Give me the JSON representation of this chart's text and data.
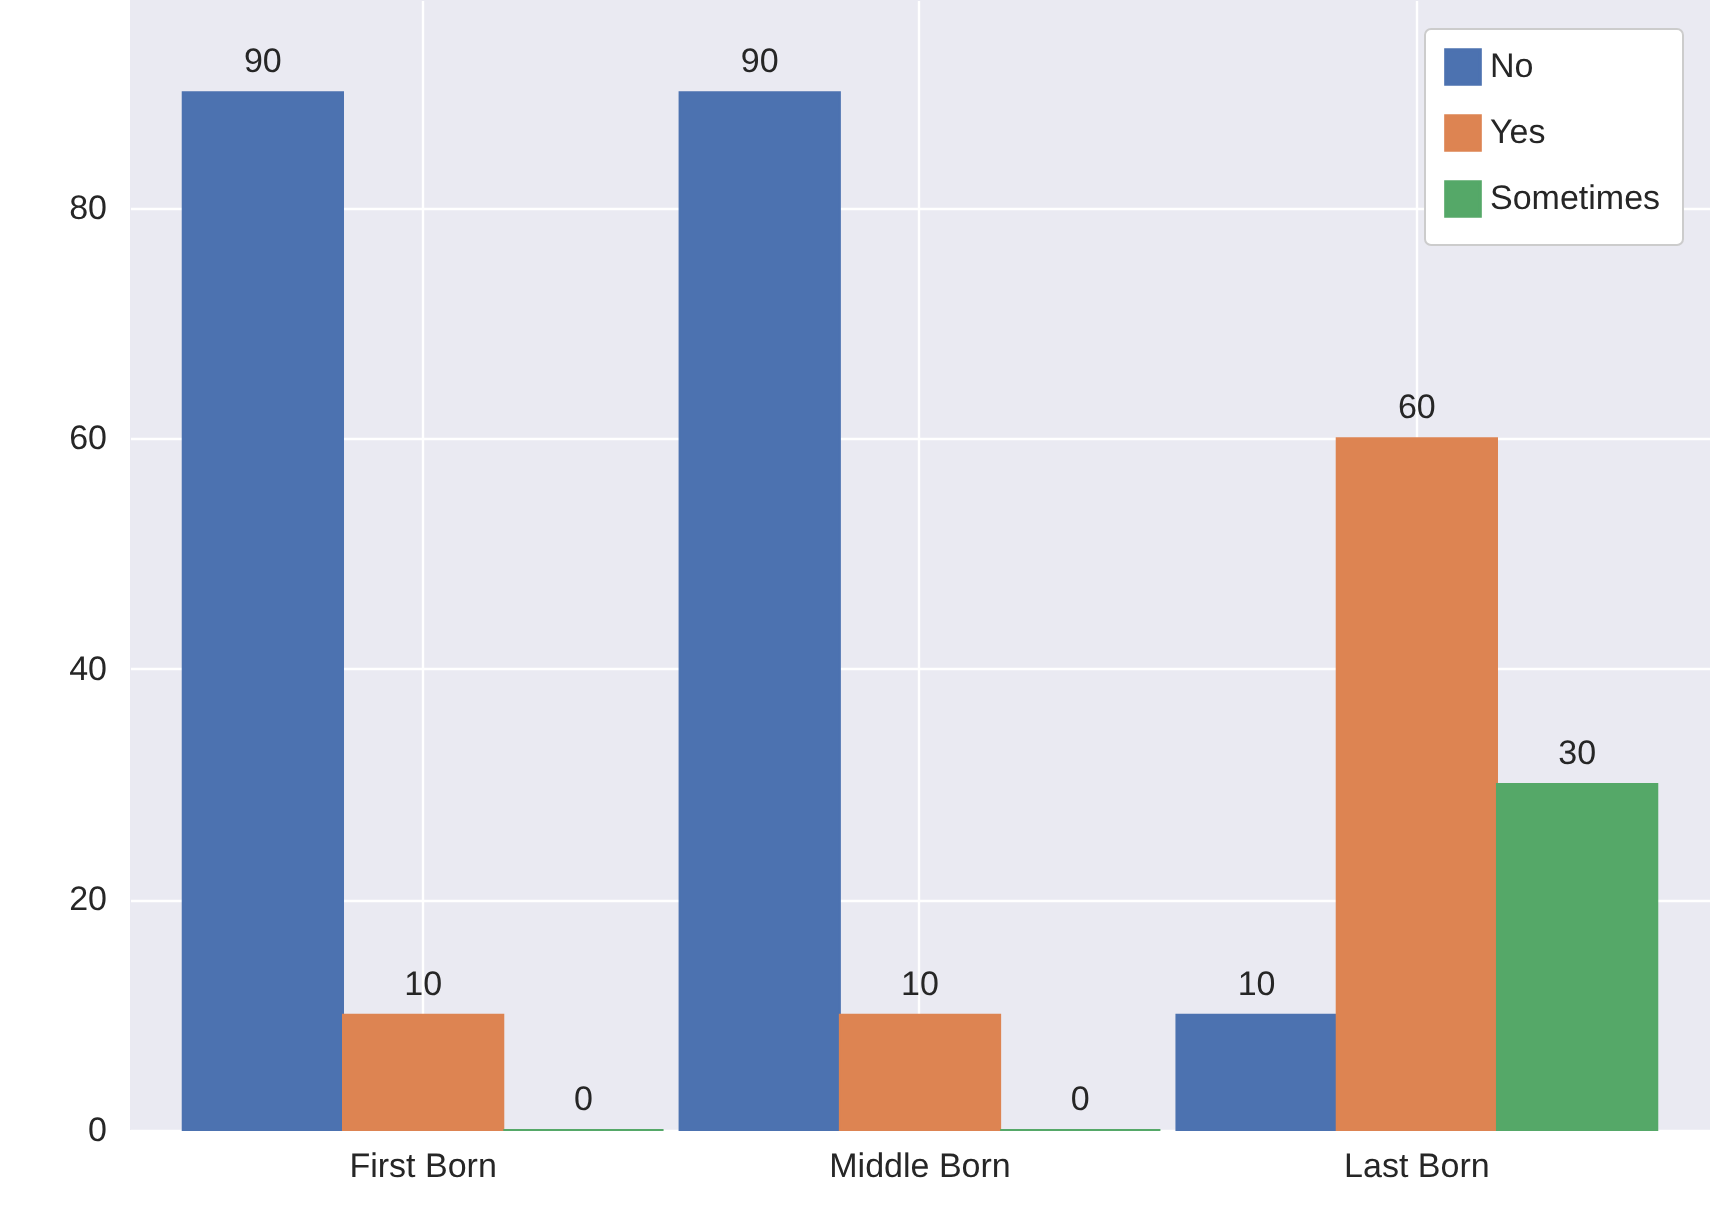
{
  "chart_data": {
    "type": "bar",
    "categories": [
      "First Born",
      "Middle Born",
      "Last Born"
    ],
    "series": [
      {
        "name": "No",
        "color": "#4c72b0",
        "values": [
          90,
          90,
          10
        ]
      },
      {
        "name": "Yes",
        "color": "#dd8452",
        "values": [
          10,
          10,
          60
        ]
      },
      {
        "name": "Sometimes",
        "color": "#55a868",
        "values": [
          0,
          0,
          30
        ]
      }
    ],
    "ylim": [
      0,
      98
    ],
    "yticks": [
      0,
      20,
      40,
      60,
      80
    ],
    "grid": true,
    "legend": "top right",
    "data_labels": true
  }
}
